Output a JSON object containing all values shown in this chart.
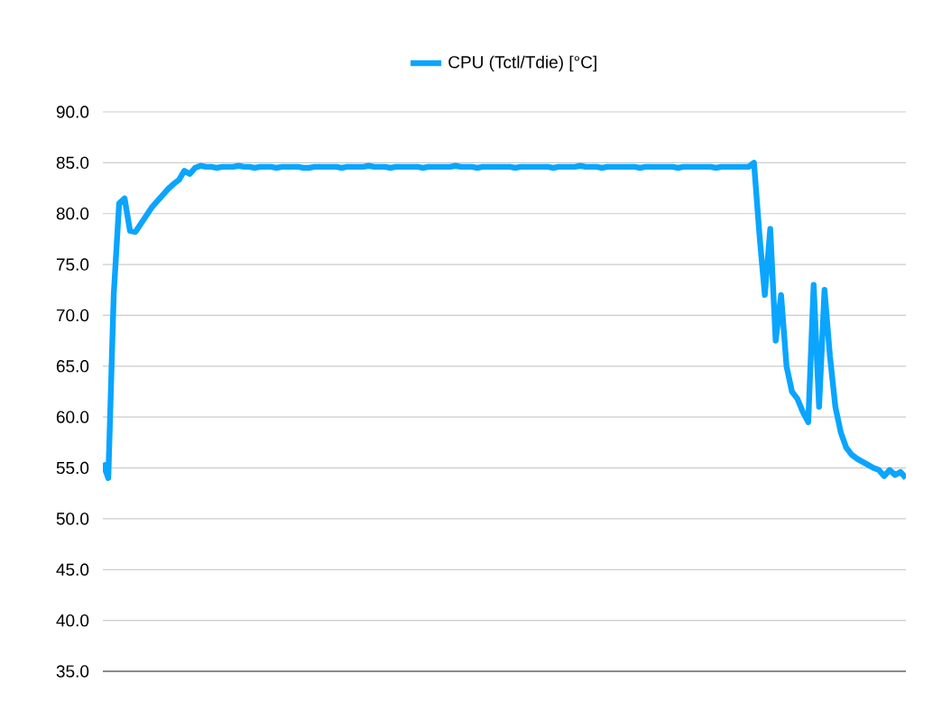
{
  "chart_data": {
    "type": "line",
    "categories": [
      null,
      null,
      null,
      null,
      null,
      null,
      null,
      null,
      null,
      null,
      null,
      null,
      null,
      null,
      null,
      null,
      null,
      null,
      null,
      null,
      null,
      null,
      null,
      null,
      null,
      null,
      null,
      null,
      null,
      null,
      null,
      null,
      null,
      null,
      null,
      null,
      null,
      null,
      null,
      null,
      null,
      null,
      null,
      null,
      null,
      null,
      null,
      null,
      null,
      null,
      null,
      null,
      null,
      null,
      null,
      null,
      null,
      null,
      null,
      null,
      null,
      null,
      null,
      null,
      null,
      null,
      null,
      null,
      null,
      null,
      null,
      null,
      null,
      null,
      null,
      null,
      null,
      null,
      null,
      null,
      null,
      null,
      null,
      null,
      null,
      null,
      null,
      null,
      null,
      null,
      null,
      null,
      null,
      null,
      null,
      null,
      null,
      null,
      null,
      null,
      null,
      null,
      null,
      null,
      null,
      null,
      null,
      null,
      null,
      null,
      null,
      null,
      null,
      null,
      null,
      null,
      null,
      null,
      null,
      null,
      null,
      null,
      null,
      null,
      null,
      null,
      null,
      null,
      null,
      null,
      null,
      null,
      null,
      null,
      null,
      null,
      null,
      null,
      null,
      null,
      null,
      null,
      null,
      null,
      null,
      null,
      null,
      null,
      null
    ],
    "series": [
      {
        "name": "CPU (Tctl/Tdie) [°C]",
        "color": "#0aa5ff",
        "values": [
          55.5,
          54,
          72,
          81,
          81.5,
          78.3,
          78.2,
          79,
          79.8,
          80.6,
          81.2,
          81.8,
          82.4,
          82.9,
          83.3,
          84.2,
          83.9,
          84.5,
          84.7,
          84.6,
          84.6,
          84.5,
          84.6,
          84.6,
          84.6,
          84.7,
          84.6,
          84.6,
          84.5,
          84.6,
          84.6,
          84.6,
          84.5,
          84.6,
          84.6,
          84.6,
          84.6,
          84.5,
          84.5,
          84.6,
          84.6,
          84.6,
          84.6,
          84.6,
          84.5,
          84.6,
          84.6,
          84.6,
          84.6,
          84.7,
          84.6,
          84.6,
          84.6,
          84.5,
          84.6,
          84.6,
          84.6,
          84.6,
          84.6,
          84.5,
          84.6,
          84.6,
          84.6,
          84.6,
          84.6,
          84.7,
          84.6,
          84.6,
          84.6,
          84.5,
          84.6,
          84.6,
          84.6,
          84.6,
          84.6,
          84.6,
          84.5,
          84.6,
          84.6,
          84.6,
          84.6,
          84.6,
          84.6,
          84.5,
          84.6,
          84.6,
          84.6,
          84.6,
          84.7,
          84.6,
          84.6,
          84.6,
          84.5,
          84.6,
          84.6,
          84.6,
          84.6,
          84.6,
          84.6,
          84.5,
          84.6,
          84.6,
          84.6,
          84.6,
          84.6,
          84.6,
          84.5,
          84.6,
          84.6,
          84.6,
          84.6,
          84.6,
          84.6,
          84.5,
          84.6,
          84.6,
          84.6,
          84.6,
          84.6,
          84.6,
          85,
          78,
          72,
          78.5,
          67.5,
          72,
          65,
          62.5,
          61.8,
          60.5,
          59.5,
          73,
          61,
          72.5,
          66,
          61,
          58.5,
          57,
          56.3,
          55.9,
          55.6,
          55.3,
          55,
          54.8,
          54.2,
          54.8,
          54.3,
          54.6,
          54
        ]
      }
    ],
    "ylim": [
      35,
      90
    ],
    "yticks": [
      {
        "value": 35,
        "label": "35.0"
      },
      {
        "value": 40,
        "label": "40.0"
      },
      {
        "value": 45,
        "label": "45.0"
      },
      {
        "value": 50,
        "label": "50.0"
      },
      {
        "value": 55,
        "label": "55.0"
      },
      {
        "value": 60,
        "label": "60.0"
      },
      {
        "value": 65,
        "label": "65.0"
      },
      {
        "value": 70,
        "label": "70.0"
      },
      {
        "value": 75,
        "label": "75.0"
      },
      {
        "value": 80,
        "label": "80.0"
      },
      {
        "value": 85,
        "label": "85.0"
      },
      {
        "value": 90,
        "label": "90.0"
      }
    ],
    "grid": "y",
    "legend": "top",
    "tick_labels": "y",
    "marker": "none",
    "line_style": "solid"
  }
}
